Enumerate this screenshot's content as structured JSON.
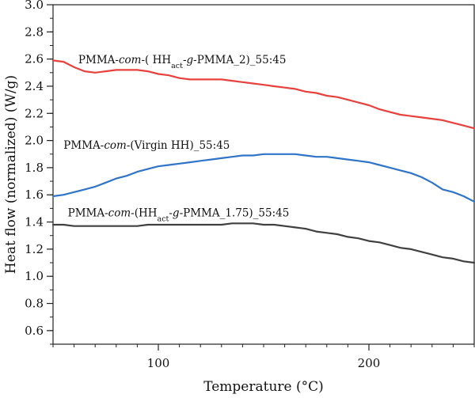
{
  "chart_data": {
    "type": "line",
    "xlabel": "Temperature (°C)",
    "ylabel": "Heat flow (normalized) (W/g)",
    "xlim": [
      50,
      250
    ],
    "ylim": [
      0.5,
      3.0
    ],
    "x_major_ticks": [
      100,
      200
    ],
    "x_tick_labels": [
      "100",
      "200"
    ],
    "y_major_ticks": [
      0.6,
      0.8,
      1.0,
      1.2,
      1.4,
      1.6,
      1.8,
      2.0,
      2.2,
      2.4,
      2.6,
      2.8,
      3.0
    ],
    "y_tick_labels": [
      "0.6",
      "0.8",
      "1.0",
      "1.2",
      "1.4",
      "1.6",
      "1.8",
      "2.0",
      "2.2",
      "2.4",
      "2.6",
      "2.8",
      "3.0"
    ],
    "grid": false,
    "series": [
      {
        "label_parts": [
          {
            "text": "PMMA-",
            "style": "normal"
          },
          {
            "text": "com",
            "style": "italic"
          },
          {
            "text": "-( HH",
            "style": "normal"
          },
          {
            "text": "act",
            "style": "sub"
          },
          {
            "text": "-",
            "style": "normal"
          },
          {
            "text": "g",
            "style": "italic"
          },
          {
            "text": "-PMMA_2)_55:45",
            "style": "normal"
          }
        ],
        "label_at": [
          62,
          2.57
        ],
        "color": "#e8413c",
        "x": [
          50,
          55,
          60,
          65,
          70,
          75,
          80,
          85,
          90,
          95,
          100,
          105,
          110,
          115,
          120,
          125,
          130,
          135,
          140,
          145,
          150,
          155,
          160,
          165,
          170,
          175,
          180,
          185,
          190,
          195,
          200,
          205,
          210,
          215,
          220,
          225,
          230,
          235,
          240,
          245,
          250
        ],
        "y": [
          2.59,
          2.58,
          2.54,
          2.51,
          2.5,
          2.51,
          2.52,
          2.52,
          2.52,
          2.51,
          2.49,
          2.48,
          2.46,
          2.45,
          2.45,
          2.45,
          2.45,
          2.44,
          2.43,
          2.42,
          2.41,
          2.4,
          2.39,
          2.38,
          2.36,
          2.35,
          2.33,
          2.32,
          2.3,
          2.28,
          2.26,
          2.23,
          2.21,
          2.19,
          2.18,
          2.17,
          2.16,
          2.15,
          2.13,
          2.11,
          2.09
        ]
      },
      {
        "label_parts": [
          {
            "text": "PMMA-",
            "style": "normal"
          },
          {
            "text": "com",
            "style": "italic"
          },
          {
            "text": "-(Virgin HH)_55:45",
            "style": "normal"
          }
        ],
        "label_at": [
          55,
          1.94
        ],
        "color": "#2f74c8",
        "x": [
          50,
          55,
          60,
          65,
          70,
          75,
          80,
          85,
          90,
          95,
          100,
          105,
          110,
          115,
          120,
          125,
          130,
          135,
          140,
          145,
          150,
          155,
          160,
          165,
          170,
          175,
          180,
          185,
          190,
          195,
          200,
          205,
          210,
          215,
          220,
          225,
          230,
          235,
          240,
          245,
          250
        ],
        "y": [
          1.59,
          1.6,
          1.62,
          1.64,
          1.66,
          1.69,
          1.72,
          1.74,
          1.77,
          1.79,
          1.81,
          1.82,
          1.83,
          1.84,
          1.85,
          1.86,
          1.87,
          1.88,
          1.89,
          1.89,
          1.9,
          1.9,
          1.9,
          1.9,
          1.89,
          1.88,
          1.88,
          1.87,
          1.86,
          1.85,
          1.84,
          1.82,
          1.8,
          1.78,
          1.76,
          1.73,
          1.69,
          1.64,
          1.62,
          1.59,
          1.55
        ]
      },
      {
        "label_parts": [
          {
            "text": "PMMA-",
            "style": "normal"
          },
          {
            "text": "com",
            "style": "italic"
          },
          {
            "text": "-(HH",
            "style": "normal"
          },
          {
            "text": "act",
            "style": "sub"
          },
          {
            "text": "-",
            "style": "normal"
          },
          {
            "text": "g",
            "style": "italic"
          },
          {
            "text": "-PMMA_1.75)_55:45",
            "style": "normal"
          }
        ],
        "label_at": [
          57,
          1.44
        ],
        "color": "#404040",
        "x": [
          50,
          55,
          60,
          65,
          70,
          75,
          80,
          85,
          90,
          95,
          100,
          105,
          110,
          115,
          120,
          125,
          130,
          135,
          140,
          145,
          150,
          155,
          160,
          165,
          170,
          175,
          180,
          185,
          190,
          195,
          200,
          205,
          210,
          215,
          220,
          225,
          230,
          235,
          240,
          245,
          250
        ],
        "y": [
          1.38,
          1.38,
          1.37,
          1.37,
          1.37,
          1.37,
          1.37,
          1.37,
          1.37,
          1.38,
          1.38,
          1.38,
          1.38,
          1.38,
          1.38,
          1.38,
          1.38,
          1.39,
          1.39,
          1.39,
          1.38,
          1.38,
          1.37,
          1.36,
          1.35,
          1.33,
          1.32,
          1.31,
          1.29,
          1.28,
          1.26,
          1.25,
          1.23,
          1.21,
          1.2,
          1.18,
          1.16,
          1.14,
          1.13,
          1.11,
          1.1
        ]
      }
    ]
  }
}
